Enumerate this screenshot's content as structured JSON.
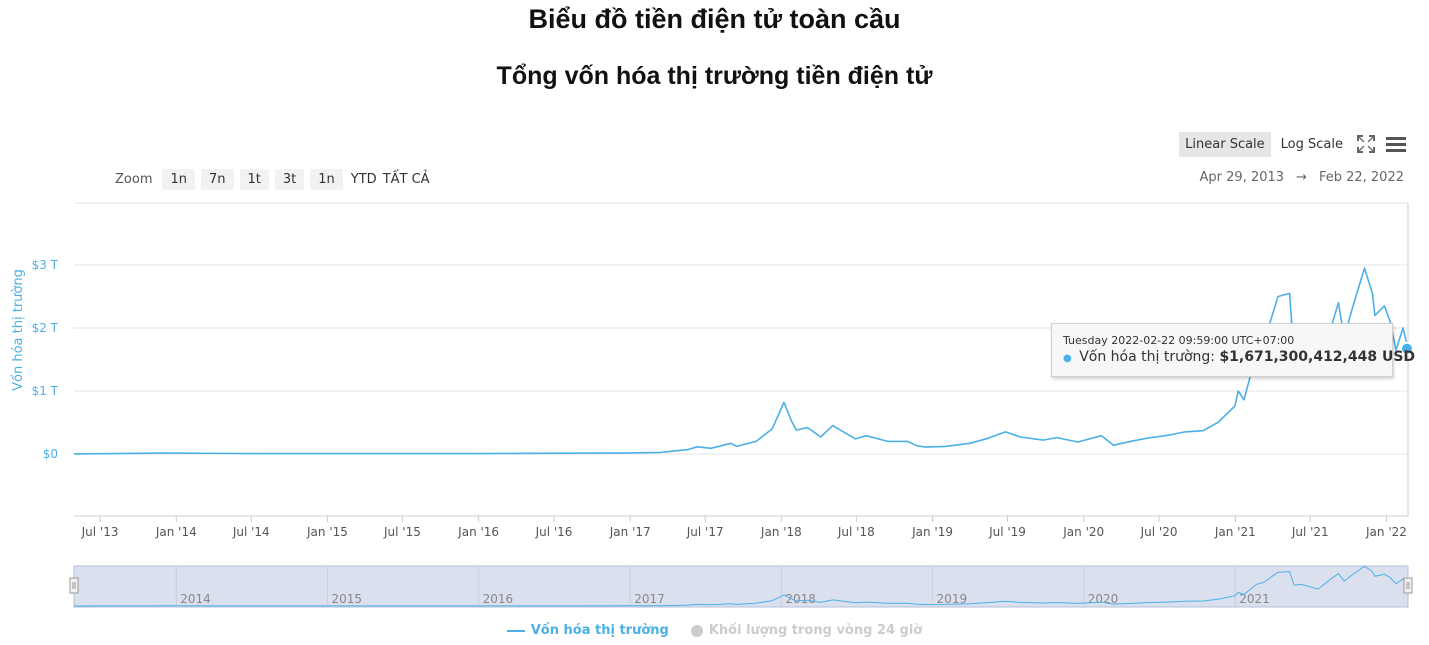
{
  "header": {
    "title": "Biểu đồ tiền điện tử toàn cầu",
    "subtitle": "Tổng vốn hóa thị trường tiền điện tử"
  },
  "toolbar": {
    "linear_scale": "Linear Scale",
    "log_scale": "Log Scale",
    "fullscreen_icon": "fullscreen-icon",
    "menu_icon": "menu-icon"
  },
  "zoom": {
    "label": "Zoom",
    "buttons": [
      "1n",
      "7n",
      "1t",
      "3t",
      "1n",
      "YTD",
      "TẤT CẢ"
    ]
  },
  "range": {
    "from": "Apr 29, 2013",
    "arrow": "→",
    "to": "Feb 22, 2022"
  },
  "tooltip": {
    "date": "Tuesday 2022-02-22 09:59:00 UTC+07:00",
    "label": "Vốn hóa thị trường:",
    "value": "$1,671,300,412,448 USD"
  },
  "navigator": {
    "years": [
      "2014",
      "2015",
      "2016",
      "2017",
      "2018",
      "2019",
      "2020",
      "2021"
    ]
  },
  "legend": {
    "items": [
      {
        "label": "Vốn hóa thị trường",
        "active": true
      },
      {
        "label": "Khối lượng trong vòng 24 giờ",
        "active": false
      }
    ]
  },
  "colors": {
    "series": "#4cb0e6",
    "navigator_mask": "#dbe0ef",
    "inactive": "#cccccc"
  },
  "chart_data": {
    "type": "line",
    "title": "Tổng vốn hóa thị trường tiền điện tử",
    "xlabel": "",
    "ylabel": "Vốn hóa thị trường",
    "y_ticks": [
      "$0",
      "$1 T",
      "$2 T",
      "$3 T"
    ],
    "ylim": [
      -1,
      4
    ],
    "xlim": [
      "2013-04-29",
      "2022-02-22"
    ],
    "x_ticks": [
      "Jul '13",
      "Jan '14",
      "Jul '14",
      "Jan '15",
      "Jul '15",
      "Jan '16",
      "Jul '16",
      "Jan '17",
      "Jul '17",
      "Jan '18",
      "Jul '18",
      "Jan '19",
      "Jul '19",
      "Jan '20",
      "Jul '20",
      "Jan '21",
      "Jul '21",
      "Jan '22"
    ],
    "x_tick_dates": [
      "2013-07-01",
      "2014-01-01",
      "2014-07-01",
      "2015-01-01",
      "2015-07-01",
      "2016-01-01",
      "2016-07-01",
      "2017-01-01",
      "2017-07-01",
      "2018-01-01",
      "2018-07-01",
      "2019-01-01",
      "2019-07-01",
      "2020-01-01",
      "2020-07-01",
      "2021-01-01",
      "2021-07-01",
      "2022-01-01"
    ],
    "y_unit": "trillion USD",
    "series": [
      {
        "name": "Vốn hóa thị trường",
        "x": [
          "2013-04-29",
          "2013-12-04",
          "2014-06-01",
          "2015-01-01",
          "2016-01-01",
          "2017-01-01",
          "2017-03-15",
          "2017-05-20",
          "2017-06-12",
          "2017-07-15",
          "2017-09-01",
          "2017-09-15",
          "2017-11-01",
          "2017-12-10",
          "2018-01-07",
          "2018-01-25",
          "2018-02-06",
          "2018-03-05",
          "2018-04-06",
          "2018-05-05",
          "2018-06-29",
          "2018-07-25",
          "2018-09-15",
          "2018-11-01",
          "2018-11-25",
          "2018-12-15",
          "2019-02-01",
          "2019-04-01",
          "2019-05-15",
          "2019-06-26",
          "2019-08-01",
          "2019-09-25",
          "2019-10-28",
          "2019-12-18",
          "2020-02-13",
          "2020-03-13",
          "2020-04-30",
          "2020-06-01",
          "2020-07-25",
          "2020-09-01",
          "2020-10-15",
          "2020-11-20",
          "2020-12-31",
          "2021-01-08",
          "2021-01-22",
          "2021-02-21",
          "2021-03-10",
          "2021-04-14",
          "2021-05-12",
          "2021-05-23",
          "2021-06-10",
          "2021-07-20",
          "2021-08-22",
          "2021-09-07",
          "2021-09-21",
          "2021-10-10",
          "2021-11-09",
          "2021-11-28",
          "2021-12-04",
          "2021-12-27",
          "2022-01-10",
          "2022-01-24",
          "2022-02-10",
          "2022-02-22"
        ],
        "values": [
          0.002,
          0.014,
          0.008,
          0.006,
          0.007,
          0.018,
          0.025,
          0.07,
          0.115,
          0.09,
          0.17,
          0.12,
          0.2,
          0.4,
          0.82,
          0.53,
          0.38,
          0.42,
          0.27,
          0.45,
          0.24,
          0.29,
          0.2,
          0.2,
          0.13,
          0.11,
          0.12,
          0.17,
          0.25,
          0.35,
          0.27,
          0.22,
          0.26,
          0.19,
          0.29,
          0.14,
          0.21,
          0.25,
          0.3,
          0.35,
          0.37,
          0.5,
          0.76,
          1.0,
          0.86,
          1.6,
          1.75,
          2.5,
          2.55,
          1.55,
          1.6,
          1.25,
          2.05,
          2.4,
          1.85,
          2.3,
          2.95,
          2.55,
          2.2,
          2.35,
          2.1,
          1.65,
          2.0,
          1.67
        ]
      }
    ],
    "legend": [
      "Vốn hóa thị trường",
      "Khối lượng trong vòng 24 giờ"
    ],
    "legend_position": "bottom-center",
    "grid": true,
    "marker_date": "2022-02-22",
    "marker_value": 1.6713
  }
}
